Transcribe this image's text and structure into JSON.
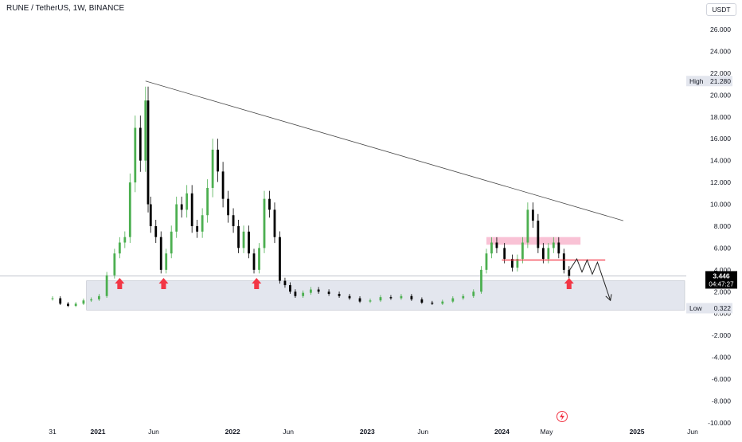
{
  "header": {
    "symbol_title": "RUNE / TetherUS, 1W, BINANCE",
    "currency": "USDT"
  },
  "badges": {
    "high_label": "High",
    "high_value": "21.280",
    "low_label": "Low",
    "low_value": "0.322",
    "last_price": "3.446",
    "countdown": "04:47:27"
  },
  "colors": {
    "up": "#26a69a",
    "candle_up": "#4caf50",
    "candle_down": "#000000",
    "arrow": "#f23645",
    "resistance_zone": "#f8bbd0",
    "support_zone": "#e3e6ee",
    "level_line": "#f23645"
  },
  "chart_data": {
    "type": "line",
    "title": "RUNE / TetherUS, 1W, BINANCE",
    "xlabel": "",
    "ylabel": "",
    "y_ticks": [
      "26.000",
      "24.000",
      "22.000",
      "20.000",
      "18.000",
      "16.000",
      "14.000",
      "12.000",
      "10.000",
      "8.000",
      "6.000",
      "4.000",
      "2.000",
      "0.000",
      "-2.000",
      "-4.000",
      "-6.000",
      "-8.000",
      "-10.000"
    ],
    "ylim": [
      -10,
      27
    ],
    "x_ticks": [
      "31",
      "2021",
      "Jun",
      "2022",
      "Jun",
      "2023",
      "Jun",
      "2024",
      "May",
      "2025",
      "Jun"
    ],
    "x_tick_dates": [
      "2020-08-31",
      "2021-01-01",
      "2021-06-01",
      "2022-01-01",
      "2022-06-01",
      "2023-01-01",
      "2023-06-01",
      "2024-01-01",
      "2024-05-01",
      "2025-01-01",
      "2025-06-01"
    ],
    "grid": false,
    "series": [
      {
        "values": [
          [
            "2020-08-31",
            1.4
          ],
          [
            "2020-09-21",
            0.9
          ],
          [
            "2020-10-12",
            0.7
          ],
          [
            "2020-11-02",
            0.9
          ],
          [
            "2020-11-23",
            1.2
          ],
          [
            "2020-12-14",
            1.3
          ],
          [
            "2021-01-04",
            1.6
          ],
          [
            "2021-01-25",
            3.5
          ],
          [
            "2021-02-15",
            5.5
          ],
          [
            "2021-03-01",
            6.5
          ],
          [
            "2021-03-15",
            7.0
          ],
          [
            "2021-03-29",
            12.0
          ],
          [
            "2021-04-12",
            17.0
          ],
          [
            "2021-04-26",
            14.0
          ],
          [
            "2021-05-10",
            19.5
          ],
          [
            "2021-05-17",
            10.0
          ],
          [
            "2021-05-24",
            8.0
          ],
          [
            "2021-06-07",
            7.0
          ],
          [
            "2021-06-21",
            4.0
          ],
          [
            "2021-07-05",
            5.5
          ],
          [
            "2021-07-19",
            7.5
          ],
          [
            "2021-08-02",
            10.0
          ],
          [
            "2021-08-16",
            9.5
          ],
          [
            "2021-08-30",
            11.0
          ],
          [
            "2021-09-13",
            8.0
          ],
          [
            "2021-09-27",
            7.5
          ],
          [
            "2021-10-11",
            9.0
          ],
          [
            "2021-10-25",
            11.5
          ],
          [
            "2021-11-08",
            15.0
          ],
          [
            "2021-11-22",
            13.0
          ],
          [
            "2021-12-06",
            10.5
          ],
          [
            "2021-12-20",
            9.0
          ],
          [
            "2022-01-03",
            8.0
          ],
          [
            "2022-01-17",
            6.0
          ],
          [
            "2022-01-31",
            7.5
          ],
          [
            "2022-02-14",
            5.5
          ],
          [
            "2022-02-28",
            4.0
          ],
          [
            "2022-03-14",
            6.0
          ],
          [
            "2022-03-28",
            10.5
          ],
          [
            "2022-04-11",
            9.5
          ],
          [
            "2022-04-25",
            7.0
          ],
          [
            "2022-05-09",
            3.0
          ],
          [
            "2022-05-23",
            2.6
          ],
          [
            "2022-06-06",
            2.0
          ],
          [
            "2022-06-20",
            1.6
          ],
          [
            "2022-07-11",
            1.9
          ],
          [
            "2022-08-01",
            2.2
          ],
          [
            "2022-08-22",
            2.0
          ],
          [
            "2022-09-19",
            1.8
          ],
          [
            "2022-10-17",
            1.6
          ],
          [
            "2022-11-14",
            1.4
          ],
          [
            "2022-12-12",
            1.1
          ],
          [
            "2023-01-09",
            1.2
          ],
          [
            "2023-02-06",
            1.5
          ],
          [
            "2023-03-06",
            1.4
          ],
          [
            "2023-04-03",
            1.6
          ],
          [
            "2023-05-01",
            1.3
          ],
          [
            "2023-05-29",
            1.0
          ],
          [
            "2023-06-26",
            0.9
          ],
          [
            "2023-07-24",
            1.1
          ],
          [
            "2023-08-21",
            1.4
          ],
          [
            "2023-09-18",
            1.6
          ],
          [
            "2023-10-16",
            2.0
          ],
          [
            "2023-11-06",
            4.0
          ],
          [
            "2023-11-20",
            5.5
          ],
          [
            "2023-12-04",
            6.5
          ],
          [
            "2023-12-18",
            6.0
          ],
          [
            "2024-01-08",
            5.0
          ],
          [
            "2024-01-29",
            4.2
          ],
          [
            "2024-02-12",
            5.0
          ],
          [
            "2024-02-26",
            6.5
          ],
          [
            "2024-03-11",
            9.5
          ],
          [
            "2024-03-25",
            8.5
          ],
          [
            "2024-04-08",
            6.0
          ],
          [
            "2024-04-22",
            5.0
          ],
          [
            "2024-05-06",
            6.0
          ],
          [
            "2024-05-20",
            6.5
          ],
          [
            "2024-06-03",
            5.5
          ],
          [
            "2024-06-17",
            4.0
          ],
          [
            "2024-07-01",
            3.446
          ]
        ]
      }
    ],
    "trendline": [
      [
        "2021-05-10",
        21.28
      ],
      [
        "2024-11-25",
        8.5
      ]
    ],
    "horizontal_level": {
      "value": 4.9,
      "from": "2024-01-01",
      "to": "2024-10-07"
    },
    "resistance_zone": {
      "y_range": [
        6.3,
        7.0
      ],
      "from": "2023-11-20",
      "to": "2024-08-01"
    },
    "support_zone": {
      "y_range": [
        0.322,
        3.0
      ],
      "from": "2020-12-14",
      "to": "2025-08-01"
    },
    "support_arrows": [
      "2021-03-01",
      "2021-06-28",
      "2022-03-07",
      "2024-07-01"
    ],
    "projection_path": [
      [
        "2024-07-01",
        3.9
      ],
      [
        "2024-07-22",
        5.0
      ],
      [
        "2024-08-05",
        3.8
      ],
      [
        "2024-08-19",
        4.9
      ],
      [
        "2024-09-02",
        3.6
      ],
      [
        "2024-09-16",
        4.7
      ],
      [
        "2024-09-30",
        3.3
      ],
      [
        "2024-10-21",
        1.2
      ]
    ],
    "high": 21.28,
    "low": 0.322,
    "last": 3.446
  }
}
